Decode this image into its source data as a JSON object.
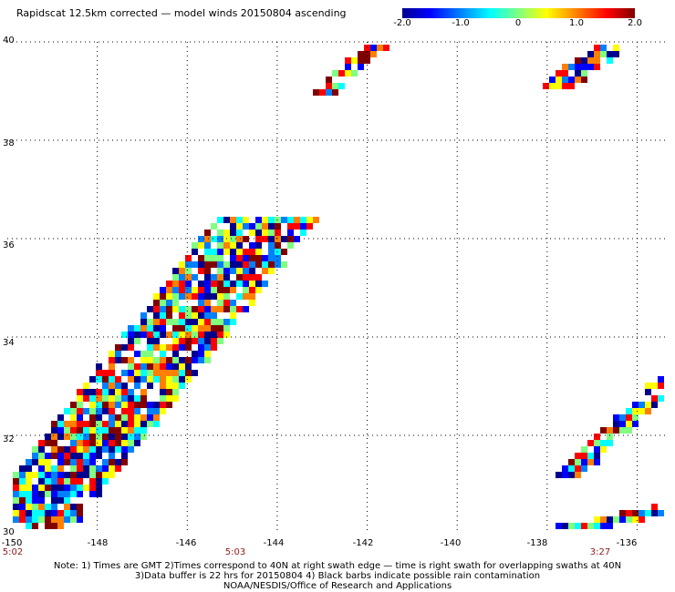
{
  "title": "Rapidscat 12.5km corrected — model winds 20150804 ascending",
  "colorbar": {
    "ticks": [
      "-2.0",
      "-1.0",
      "0",
      "1.0",
      "2.0"
    ],
    "tick_values": [
      -2.0,
      -1.0,
      0,
      1.0,
      2.0
    ],
    "colors": [
      "#00008f",
      "#0000ff",
      "#0080ff",
      "#00ffff",
      "#80ff80",
      "#ffff00",
      "#ff8000",
      "#ff0000",
      "#800000"
    ]
  },
  "axes": {
    "lat_labels": [
      "40",
      "38",
      "36",
      "34",
      "32",
      "30"
    ],
    "lat_values": [
      40,
      38,
      36,
      34,
      32,
      30
    ],
    "lon_labels": [
      "-150",
      "-148",
      "-146",
      "-144",
      "-142",
      "-140",
      "-138",
      "-136"
    ],
    "lon_values": [
      -150,
      -148,
      -146,
      -144,
      -142,
      -140,
      -138,
      -136
    ],
    "lat_range": [
      30,
      40
    ],
    "lon_range": [
      -150,
      -135.3
    ]
  },
  "times": [
    {
      "label": "5:02",
      "lon": -150
    },
    {
      "label": "5:03",
      "lon": -145
    },
    {
      "label": "3:27",
      "lon": -136.5
    }
  ],
  "notes": [
    "Note: 1) Times are GMT 2)Times correspond to 40N at right swath edge — time is right swath for overlapping swaths at 40N",
    "3)Data buffer is 22 hrs for 20150804 4) Black barbs indicate possible rain contamination",
    "NOAA/NESDIS/Office of Research and Applications"
  ],
  "swaths": [
    {
      "name": "main",
      "lon_start": -149.8,
      "lon_end": -144.2,
      "lat_start": 30.1,
      "lat_end": 36.5,
      "width": 2.2
    },
    {
      "name": "ne-top",
      "lon_start": -137.8,
      "lon_end": -136.4,
      "lat_start": 39.2,
      "lat_end": 40.1,
      "width": 0.6
    },
    {
      "name": "n-mid",
      "lon_start": -143.0,
      "lon_end": -141.8,
      "lat_start": 39.0,
      "lat_end": 40.0,
      "width": 0.4
    },
    {
      "name": "se",
      "lon_start": -137.5,
      "lon_end": -135.3,
      "lat_start": 31.3,
      "lat_end": 33.2,
      "width": 0.5
    },
    {
      "name": "bottom",
      "lon_start": -138.3,
      "lon_end": -135.3,
      "lat_start": 30.0,
      "lat_end": 30.6,
      "width": 0.6
    }
  ]
}
